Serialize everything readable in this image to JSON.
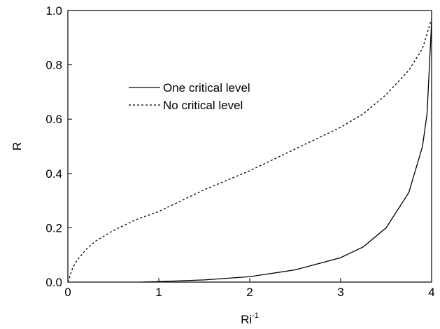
{
  "chart_data": {
    "type": "line",
    "xlabel": {
      "base": "Ri",
      "sup": "-1"
    },
    "ylabel": "R",
    "xlim": [
      0,
      4
    ],
    "ylim": [
      0,
      1
    ],
    "xticks": [
      0,
      1,
      2,
      3,
      4
    ],
    "yticks": [
      {
        "value": 0,
        "label": "0.0"
      },
      {
        "value": 0.2,
        "label": "0.2"
      },
      {
        "value": 0.4,
        "label": "0.4"
      },
      {
        "value": 0.6,
        "label": "0.6"
      },
      {
        "value": 0.8,
        "label": "0.8"
      },
      {
        "value": 1,
        "label": "1.0"
      }
    ],
    "legend": "upper-left",
    "series": [
      {
        "name": "One critical level",
        "color": "#000000",
        "dash": "solid",
        "x": [
          0.8,
          1,
          1.5,
          2,
          2.5,
          3,
          3.25,
          3.5,
          3.75,
          3.9,
          3.95,
          4
        ],
        "values": [
          0,
          0.002,
          0.008,
          0.02,
          0.045,
          0.09,
          0.13,
          0.2,
          0.33,
          0.5,
          0.62,
          0.96
        ]
      },
      {
        "name": "No critical level",
        "color": "#000000",
        "dash": "dashed",
        "x": [
          0,
          0.05,
          0.1,
          0.2,
          0.3,
          0.5,
          0.75,
          1,
          1.5,
          2,
          2.5,
          3,
          3.25,
          3.5,
          3.75,
          3.9,
          4
        ],
        "values": [
          0,
          0.05,
          0.08,
          0.12,
          0.15,
          0.19,
          0.23,
          0.26,
          0.34,
          0.41,
          0.49,
          0.57,
          0.62,
          0.69,
          0.78,
          0.86,
          0.97
        ]
      }
    ]
  }
}
